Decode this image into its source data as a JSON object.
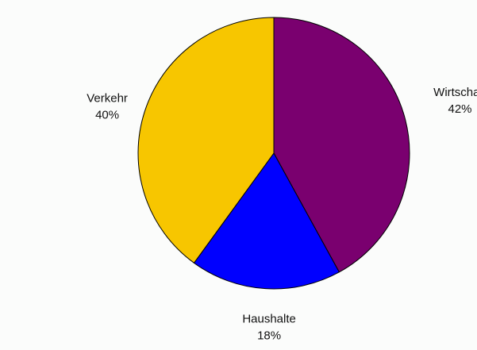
{
  "chart_data": {
    "type": "pie",
    "title": "",
    "start_angle_deg": 90,
    "direction": "clockwise",
    "slices": [
      {
        "label": "Wirtschaft",
        "value": 42,
        "value_label": "42%",
        "color": "#7a006f"
      },
      {
        "label": "Haushalte",
        "value": 18,
        "value_label": "18%",
        "color": "#0000ff"
      },
      {
        "label": "Verkehr",
        "value": 40,
        "value_label": "40%",
        "color": "#f7c600"
      }
    ],
    "legend": "none",
    "slice_border_color": "#000000"
  }
}
